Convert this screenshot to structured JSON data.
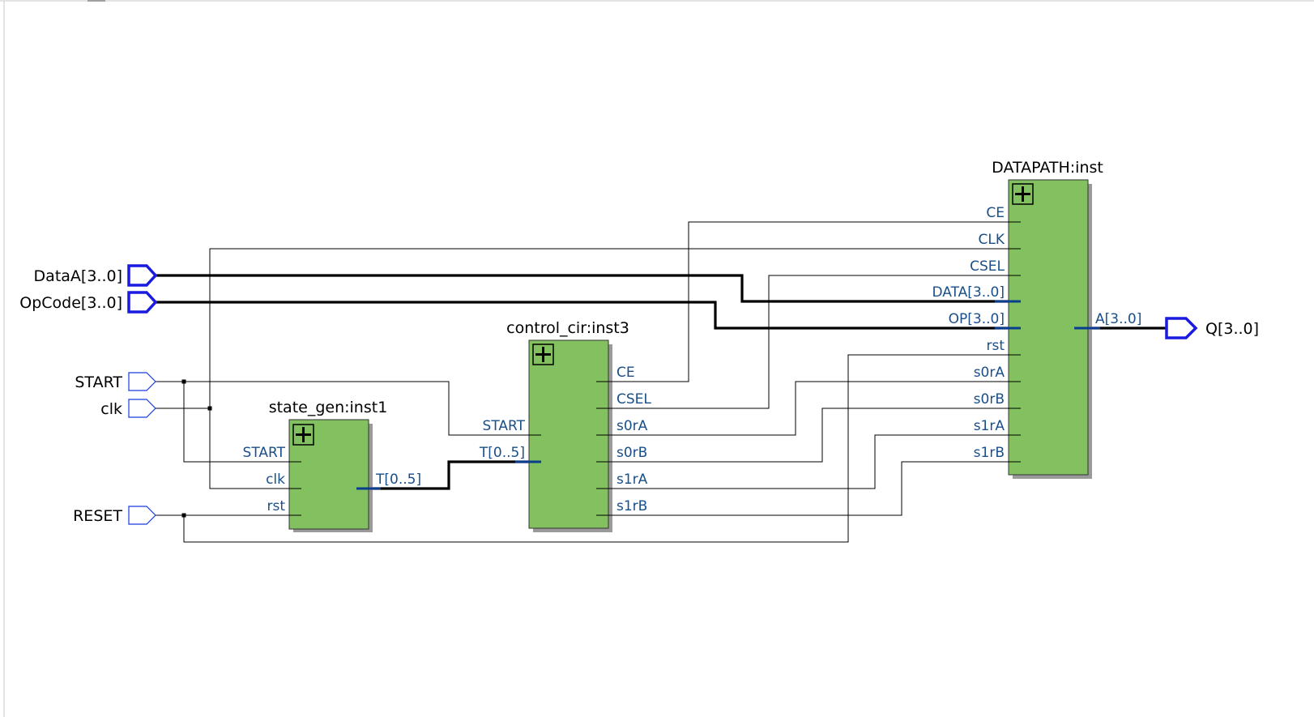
{
  "inputs": {
    "dataa": "DataA[3..0]",
    "opcode": "OpCode[3..0]",
    "start": "START",
    "clk": "clk",
    "reset": "RESET"
  },
  "outputs": {
    "q": "Q[3..0]"
  },
  "blocks": {
    "state_gen": {
      "name": "state_gen:inst1",
      "inputs": [
        "START",
        "clk",
        "rst"
      ],
      "outputs": [
        "T[0..5]"
      ]
    },
    "control_cir": {
      "name": "control_cir:inst3",
      "inputs": [
        "START",
        "T[0..5]"
      ],
      "outputs": [
        "CE",
        "CSEL",
        "s0rA",
        "s0rB",
        "s1rA",
        "s1rB"
      ]
    },
    "datapath": {
      "name": "DATAPATH:inst",
      "inputs": [
        "CE",
        "CLK",
        "CSEL",
        "DATA[3..0]",
        "OP[3..0]",
        "rst",
        "s0rA",
        "s0rB",
        "s1rA",
        "s1rB"
      ],
      "outputs": [
        "A[3..0]"
      ]
    }
  },
  "colors": {
    "block_fill": "#82c060",
    "pin_text": "#1a4f8a",
    "port_outline": "#1a3be0"
  }
}
